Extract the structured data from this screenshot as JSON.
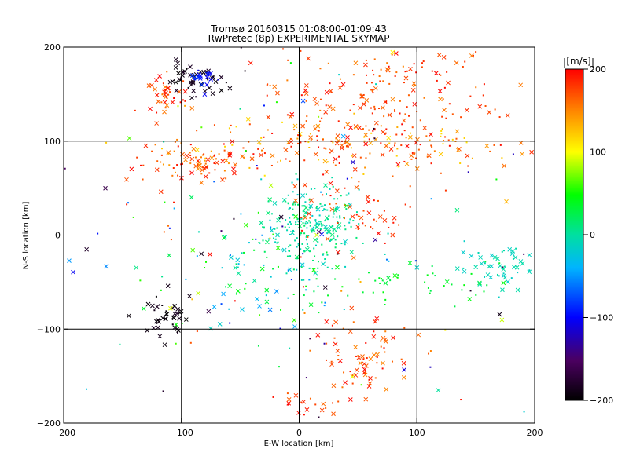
{
  "chart_data": {
    "type": "scatter",
    "title": "Tromsø 20160315 01:08:00-01:09:43",
    "subtitle": "RwPretec (8p) EXPERIMENTAL SKYMAP",
    "xlabel": "E-W location [km]",
    "ylabel": "N-S location [km]",
    "xlim": [
      -200,
      200
    ],
    "ylim": [
      -200,
      200
    ],
    "x_ticks": [
      "-200",
      "-100",
      "0",
      "100",
      "200"
    ],
    "y_ticks": [
      "-200",
      "-100",
      "0",
      "100",
      "200"
    ],
    "grid_lines_x": [
      -100,
      0,
      100
    ],
    "grid_lines_y": [
      -100,
      0,
      100
    ],
    "colorbar": {
      "label": "[m/s]",
      "range": [
        -200,
        200
      ],
      "ticks": [
        "200",
        "100",
        "0",
        "-100",
        "-200"
      ],
      "colormap": "black-purple-blue-cyan-green-yellow-red",
      "placement": "right"
    },
    "marker_styles": [
      "dot",
      "x"
    ],
    "clusters": [
      {
        "cx": 10,
        "cy": 10,
        "sx": 20,
        "sy": 22,
        "n": 260,
        "v": [
          -20,
          20
        ],
        "xfrac": 0.15
      },
      {
        "cx": 40,
        "cy": 95,
        "sx": 70,
        "sy": 14,
        "n": 220,
        "v": [
          110,
          200
        ],
        "xfrac": 0.3
      },
      {
        "cx": 70,
        "cy": 150,
        "sx": 50,
        "sy": 25,
        "n": 180,
        "v": [
          150,
          200
        ],
        "xfrac": 0.3
      },
      {
        "cx": -90,
        "cy": 80,
        "sx": 20,
        "sy": 12,
        "n": 80,
        "v": [
          140,
          200
        ],
        "xfrac": 0.4
      },
      {
        "cx": -110,
        "cy": 145,
        "sx": 10,
        "sy": 12,
        "n": 40,
        "v": [
          150,
          200
        ],
        "xfrac": 0.6
      },
      {
        "cx": -90,
        "cy": 165,
        "sx": 12,
        "sy": 8,
        "n": 50,
        "v": [
          -200,
          -180
        ],
        "xfrac": 0.8
      },
      {
        "cx": -85,
        "cy": 170,
        "sx": 6,
        "sy": 4,
        "n": 20,
        "v": [
          -110,
          -80
        ],
        "xfrac": 0.6
      },
      {
        "cx": -115,
        "cy": -85,
        "sx": 12,
        "sy": 12,
        "n": 45,
        "v": [
          -200,
          -180
        ],
        "xfrac": 0.7
      },
      {
        "cx": 55,
        "cy": -130,
        "sx": 22,
        "sy": 20,
        "n": 80,
        "v": [
          150,
          200
        ],
        "xfrac": 0.5
      },
      {
        "cx": 170,
        "cy": -35,
        "sx": 20,
        "sy": 10,
        "n": 55,
        "v": [
          -20,
          0
        ],
        "xfrac": 0.6
      },
      {
        "cx": 90,
        "cy": -50,
        "sx": 40,
        "sy": 10,
        "n": 45,
        "v": [
          20,
          50
        ],
        "xfrac": 0.2
      },
      {
        "cx": 50,
        "cy": 25,
        "sx": 30,
        "sy": 20,
        "n": 60,
        "v": [
          160,
          200
        ],
        "xfrac": 0.4
      },
      {
        "cx": -30,
        "cy": -40,
        "sx": 40,
        "sy": 35,
        "n": 90,
        "v": [
          -60,
          60
        ],
        "xfrac": 0.3
      },
      {
        "cx": 0,
        "cy": 0,
        "sx": 110,
        "sy": 110,
        "n": 150,
        "v": [
          -200,
          200
        ],
        "xfrac": 0.4
      },
      {
        "cx": 0,
        "cy": -180,
        "sx": 12,
        "sy": 10,
        "n": 15,
        "v": [
          160,
          200
        ],
        "xfrac": 0.5
      }
    ]
  }
}
